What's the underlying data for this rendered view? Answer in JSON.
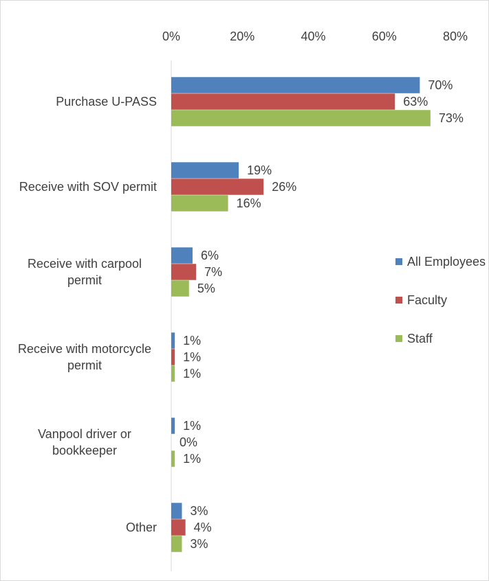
{
  "chart_data": {
    "type": "bar",
    "orientation": "horizontal",
    "categories": [
      "Purchase U-PASS",
      "Receive with SOV permit",
      "Receive with carpool permit",
      "Receive with motorcycle permit",
      "Vanpool driver or bookkeeper",
      "Other"
    ],
    "series": [
      {
        "name": "All Employees",
        "color": "#4f81bd",
        "values": [
          70,
          19,
          6,
          1,
          1,
          3
        ],
        "value_labels": [
          "70%",
          "19%",
          "6%",
          "1%",
          "1%",
          "3%"
        ]
      },
      {
        "name": "Faculty",
        "color": "#c0504d",
        "values": [
          63,
          26,
          7,
          1,
          0,
          4
        ],
        "value_labels": [
          "63%",
          "26%",
          "7%",
          "1%",
          "0%",
          "4%"
        ]
      },
      {
        "name": "Staff",
        "color": "#9bbb59",
        "values": [
          73,
          16,
          5,
          1,
          1,
          3
        ],
        "value_labels": [
          "73%",
          "16%",
          "5%",
          "1%",
          "1%",
          "3%"
        ]
      }
    ],
    "xlim": [
      0,
      80
    ],
    "xticks": [
      {
        "value": 0,
        "label": "0%"
      },
      {
        "value": 20,
        "label": "20%"
      },
      {
        "value": 40,
        "label": "40%"
      },
      {
        "value": 60,
        "label": "60%"
      },
      {
        "value": 80,
        "label": "80%"
      }
    ],
    "xaxis_position": "top",
    "grid": false,
    "legend": "right"
  }
}
